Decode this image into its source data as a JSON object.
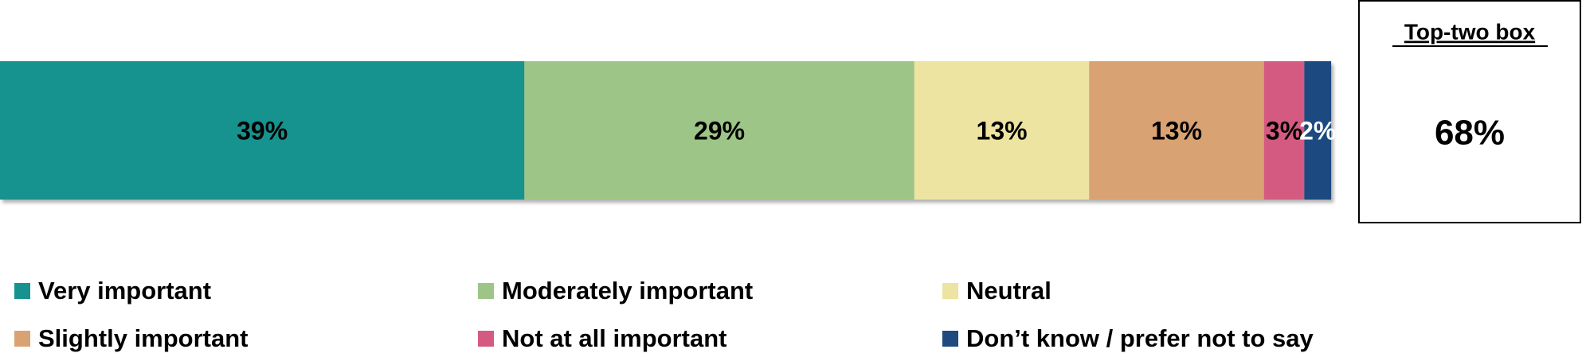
{
  "chart_data": {
    "type": "bar",
    "orientation": "horizontal",
    "stacked": true,
    "xlim": [
      0,
      100
    ],
    "series": [
      {
        "name": "Very important",
        "color": "#17928f",
        "values": [
          39
        ],
        "value_labels": [
          "39%"
        ]
      },
      {
        "name": "Moderately important",
        "color": "#9dc587",
        "values": [
          29
        ],
        "value_labels": [
          "29%"
        ]
      },
      {
        "name": "Neutral",
        "color": "#ede4a1",
        "values": [
          13
        ],
        "value_labels": [
          "13%"
        ]
      },
      {
        "name": "Slightly important",
        "color": "#d9a272",
        "values": [
          13
        ],
        "value_labels": [
          "13%"
        ]
      },
      {
        "name": "Not at all important",
        "color": "#d45a82",
        "values": [
          3
        ],
        "value_labels": [
          "3%"
        ]
      },
      {
        "name": "Don’t know / prefer not to say",
        "color": "#1f4a7f",
        "values": [
          2
        ],
        "value_labels": [
          "2%"
        ]
      }
    ],
    "top_two_box": {
      "title": "Top-two box",
      "value": 68,
      "label": "68%"
    }
  }
}
